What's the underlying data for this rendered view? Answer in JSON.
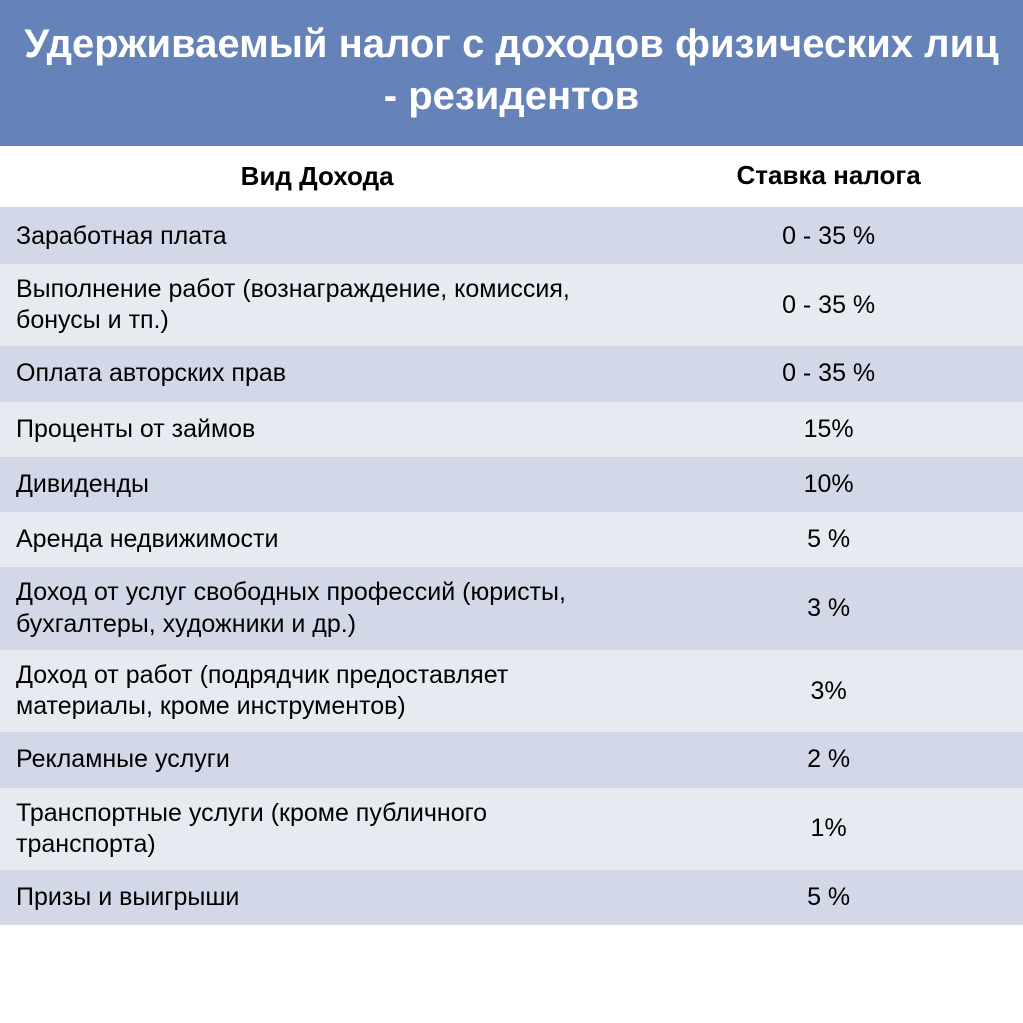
{
  "header": {
    "title": "Удерживаемый налог с доходов физических лиц - резидентов"
  },
  "table": {
    "columns": {
      "income_type": "Вид Дохода",
      "tax_rate": "Ставка налога"
    },
    "rows": [
      {
        "income_type": "Заработная плата",
        "tax_rate": "0 - 35 %"
      },
      {
        "income_type": "Выполнение работ (вознаграждение, комиссия, бонусы и тп.)",
        "tax_rate": "0 - 35 %"
      },
      {
        "income_type": "Оплата авторских прав",
        "tax_rate": "0 - 35 %"
      },
      {
        "income_type": "Проценты от займов",
        "tax_rate": "15%"
      },
      {
        "income_type": "Дивиденды",
        "tax_rate": "10%"
      },
      {
        "income_type": "Аренда недвижимости",
        "tax_rate": "5 %"
      },
      {
        "income_type": "Доход от услуг свободных профессий (юристы, бухгалтеры, художники и др.)",
        "tax_rate": "3 %"
      },
      {
        "income_type": "Доход от работ (подрядчик предоставляет материалы, кроме инструментов)",
        "tax_rate": "3%"
      },
      {
        "income_type": "Рекламные услуги",
        "tax_rate": "2 %"
      },
      {
        "income_type": "Транспортные услуги (кроме публичного транспорта)",
        "tax_rate": "1%"
      },
      {
        "income_type": "Призы и выигрыши",
        "tax_rate": "5 %"
      }
    ]
  },
  "colors": {
    "header_bg": "#6582b9",
    "header_text": "#ffffff",
    "row_even": "#e8eaf1",
    "row_odd": "#d2d8e7",
    "text": "#000000"
  },
  "typography": {
    "header_fontsize": 40,
    "colheader_fontsize": 26,
    "cell_fontsize": 25
  }
}
